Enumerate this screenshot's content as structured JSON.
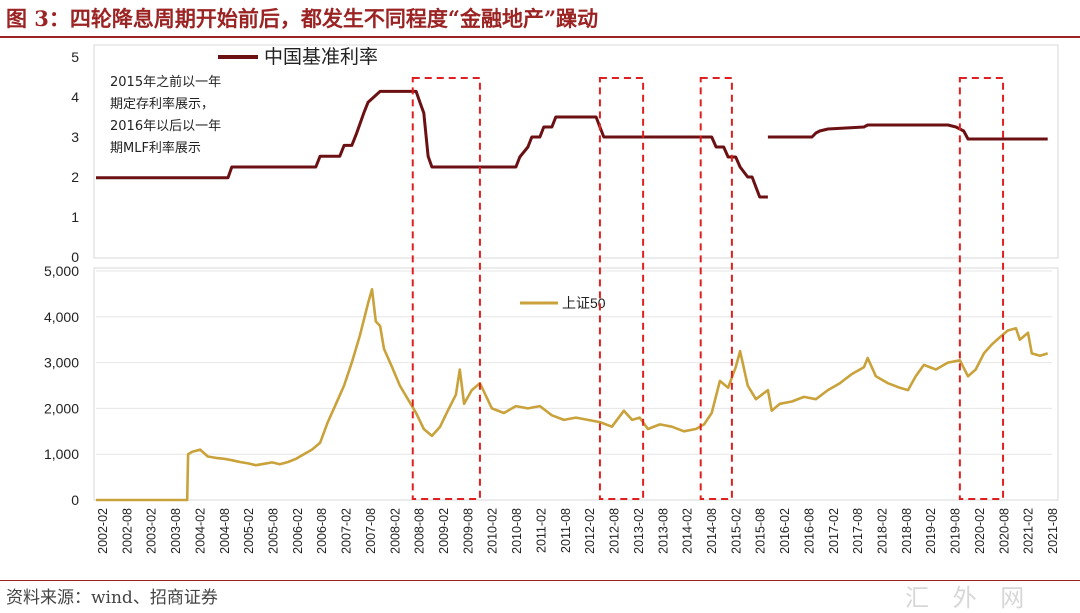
{
  "title": "图 3：四轮降息周期开始前后，都发生不同程度“金融地产”躁动",
  "source": "资料来源：wind、招商证券",
  "watermark": "汇 外 网",
  "colors": {
    "rate": "#6b1113",
    "index": "#c9a23b",
    "box": "#e02020",
    "title": "#9b2323",
    "grid": "#e6e6e6"
  },
  "chart_data": [
    {
      "type": "line",
      "legend": "中国基准利率",
      "legend_position": "top-left",
      "annotation": [
        "2015年之前以一年",
        "期定存利率展示，",
        "2016年以后以一年",
        "期MLF利率展示"
      ],
      "ylim": [
        0,
        5
      ],
      "yticks": [
        "0",
        "1",
        "2",
        "3",
        "4",
        "5"
      ],
      "grid": false,
      "series": [
        {
          "name": "中国基准利率",
          "segments": [
            {
              "x": [
                2002.0,
                2004.75,
                2004.83,
                2006.58,
                2006.67,
                2007.08,
                2007.17,
                2007.33,
                2007.42,
                2007.5,
                2007.58,
                2007.67,
                2007.92,
                2008.67,
                2008.75,
                2008.83,
                2008.92,
                2009.0,
                2010.75,
                2010.83,
                2011.0,
                2011.08,
                2011.25,
                2011.33,
                2011.5,
                2011.58,
                2012.42,
                2012.5,
                2012.58,
                2014.83,
                2014.92,
                2015.08,
                2015.17,
                2015.33,
                2015.42,
                2015.58,
                2015.67,
                2015.75,
                2015.83,
                2016.0
              ],
              "y": [
                1.98,
                1.98,
                2.25,
                2.25,
                2.52,
                2.52,
                2.79,
                2.79,
                3.06,
                3.33,
                3.6,
                3.87,
                4.14,
                4.14,
                3.87,
                3.6,
                2.52,
                2.25,
                2.25,
                2.5,
                2.75,
                3.0,
                3.0,
                3.25,
                3.25,
                3.5,
                3.5,
                3.25,
                3.0,
                3.0,
                2.75,
                2.75,
                2.5,
                2.5,
                2.25,
                2.0,
                2.0,
                1.75,
                1.5,
                1.5
              ]
            },
            {
              "x": [
                2016.0,
                2016.92,
                2017.0,
                2017.08,
                2017.25,
                2018.0,
                2018.08,
                2019.75,
                2019.92,
                2020.08,
                2020.17,
                2021.83
              ],
              "y": [
                3.0,
                3.0,
                3.1,
                3.15,
                3.2,
                3.25,
                3.3,
                3.3,
                3.25,
                3.15,
                2.95,
                2.95
              ]
            }
          ]
        }
      ]
    },
    {
      "type": "line",
      "legend": "上证50",
      "legend_position": "center",
      "ylim": [
        0,
        5000
      ],
      "yticks": [
        "0",
        "1,000",
        "2,000",
        "3,000",
        "4,000",
        "5,000"
      ],
      "grid": true,
      "xlabels": [
        "2002-02",
        "2002-08",
        "2003-02",
        "2003-08",
        "2004-02",
        "2004-08",
        "2005-02",
        "2005-08",
        "2006-02",
        "2006-08",
        "2007-02",
        "2007-08",
        "2008-02",
        "2008-08",
        "2009-02",
        "2009-08",
        "2010-02",
        "2010-08",
        "2011-02",
        "2011-08",
        "2012-02",
        "2012-08",
        "2013-02",
        "2013-08",
        "2014-02",
        "2014-08",
        "2015-02",
        "2015-08",
        "2016-02",
        "2016-08",
        "2017-02",
        "2017-08",
        "2018-02",
        "2018-08",
        "2019-02",
        "2019-08",
        "2020-02",
        "2020-08",
        "2021-02",
        "2021-08"
      ],
      "series": [
        {
          "name": "上证50",
          "x": [
            2002.0,
            2003.9,
            2003.92,
            2004.0,
            2004.17,
            2004.33,
            2004.5,
            2004.67,
            2004.83,
            2005.0,
            2005.17,
            2005.33,
            2005.5,
            2005.67,
            2005.83,
            2006.0,
            2006.17,
            2006.33,
            2006.5,
            2006.67,
            2006.83,
            2007.0,
            2007.17,
            2007.33,
            2007.5,
            2007.67,
            2007.75,
            2007.83,
            2007.92,
            2008.0,
            2008.17,
            2008.33,
            2008.5,
            2008.67,
            2008.83,
            2009.0,
            2009.17,
            2009.33,
            2009.5,
            2009.58,
            2009.67,
            2009.83,
            2010.0,
            2010.25,
            2010.5,
            2010.75,
            2011.0,
            2011.25,
            2011.5,
            2011.75,
            2012.0,
            2012.25,
            2012.5,
            2012.75,
            2013.0,
            2013.17,
            2013.33,
            2013.5,
            2013.75,
            2014.0,
            2014.25,
            2014.5,
            2014.67,
            2014.83,
            2015.0,
            2015.17,
            2015.33,
            2015.42,
            2015.58,
            2015.75,
            2016.0,
            2016.08,
            2016.25,
            2016.5,
            2016.75,
            2017.0,
            2017.25,
            2017.5,
            2017.75,
            2018.0,
            2018.08,
            2018.25,
            2018.5,
            2018.75,
            2018.92,
            2019.08,
            2019.25,
            2019.5,
            2019.75,
            2020.0,
            2020.17,
            2020.33,
            2020.5,
            2020.67,
            2020.83,
            2021.0,
            2021.17,
            2021.25,
            2021.42,
            2021.5,
            2021.67,
            2021.83
          ],
          "y": [
            0,
            0,
            1000,
            1050,
            1100,
            950,
            920,
            900,
            870,
            830,
            800,
            760,
            790,
            820,
            780,
            830,
            900,
            1000,
            1100,
            1250,
            1700,
            2100,
            2500,
            3000,
            3600,
            4300,
            4600,
            3900,
            3800,
            3300,
            2900,
            2500,
            2200,
            1900,
            1550,
            1400,
            1600,
            1950,
            2300,
            2850,
            2100,
            2400,
            2550,
            2000,
            1900,
            2050,
            2000,
            2050,
            1850,
            1750,
            1800,
            1750,
            1700,
            1600,
            1950,
            1750,
            1800,
            1550,
            1650,
            1600,
            1500,
            1550,
            1650,
            1900,
            2600,
            2450,
            2900,
            3250,
            2500,
            2200,
            2400,
            1950,
            2100,
            2150,
            2250,
            2200,
            2400,
            2550,
            2750,
            2900,
            3100,
            2700,
            2550,
            2450,
            2400,
            2700,
            2950,
            2850,
            3000,
            3050,
            2700,
            2850,
            3200,
            3400,
            3550,
            3700,
            3750,
            3500,
            3650,
            3200,
            3150,
            3200
          ]
        }
      ]
    }
  ],
  "highlight_boxes": [
    {
      "from": 2008.6,
      "to": 2010.0
    },
    {
      "from": 2012.5,
      "to": 2013.4
    },
    {
      "from": 2014.6,
      "to": 2015.25
    },
    {
      "from": 2020.0,
      "to": 2020.9
    }
  ]
}
